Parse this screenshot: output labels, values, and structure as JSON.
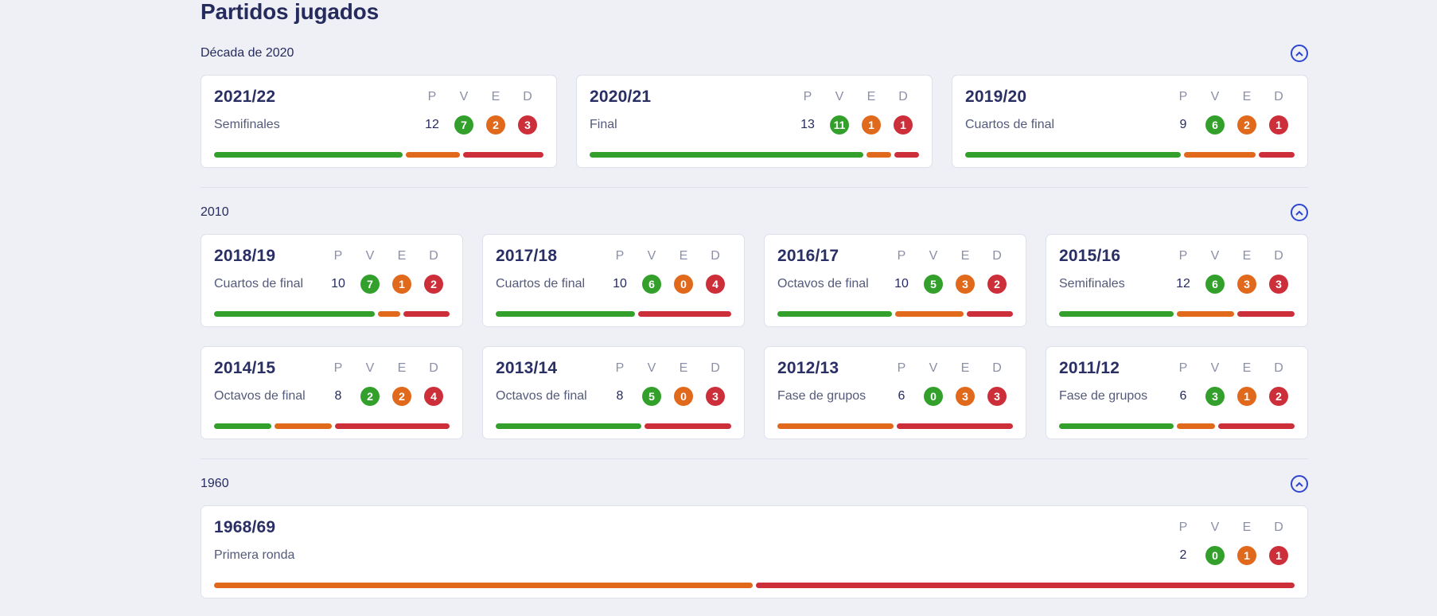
{
  "page_title": "Partidos jugados",
  "headers": {
    "p": "P",
    "v": "V",
    "e": "E",
    "d": "D"
  },
  "colors": {
    "win": "#33a02c",
    "draw": "#e0691c",
    "loss": "#cc2f3a",
    "accent": "#2f46d1"
  },
  "sections": [
    {
      "title": "Década de 2020",
      "toggle_icon": "chevron-up-icon",
      "seasons": [
        {
          "season": "2021/22",
          "stage": "Semifinales",
          "p": "12",
          "v": "7",
          "e": "2",
          "d": "3"
        },
        {
          "season": "2020/21",
          "stage": "Final",
          "p": "13",
          "v": "11",
          "e": "1",
          "d": "1"
        },
        {
          "season": "2019/20",
          "stage": "Cuartos de final",
          "p": "9",
          "v": "6",
          "e": "2",
          "d": "1"
        }
      ]
    },
    {
      "title": "2010",
      "toggle_icon": "chevron-up-icon",
      "seasons": [
        {
          "season": "2018/19",
          "stage": "Cuartos de final",
          "p": "10",
          "v": "7",
          "e": "1",
          "d": "2"
        },
        {
          "season": "2017/18",
          "stage": "Cuartos de final",
          "p": "10",
          "v": "6",
          "e": "0",
          "d": "4"
        },
        {
          "season": "2016/17",
          "stage": "Octavos de final",
          "p": "10",
          "v": "5",
          "e": "3",
          "d": "2"
        },
        {
          "season": "2015/16",
          "stage": "Semifinales",
          "p": "12",
          "v": "6",
          "e": "3",
          "d": "3"
        },
        {
          "season": "2014/15",
          "stage": "Octavos de final",
          "p": "8",
          "v": "2",
          "e": "2",
          "d": "4"
        },
        {
          "season": "2013/14",
          "stage": "Octavos de final",
          "p": "8",
          "v": "5",
          "e": "0",
          "d": "3"
        },
        {
          "season": "2012/13",
          "stage": "Fase de grupos",
          "p": "6",
          "v": "0",
          "e": "3",
          "d": "3"
        },
        {
          "season": "2011/12",
          "stage": "Fase de grupos",
          "p": "6",
          "v": "3",
          "e": "1",
          "d": "2"
        }
      ]
    },
    {
      "title": "1960",
      "toggle_icon": "chevron-up-icon",
      "seasons": [
        {
          "season": "1968/69",
          "stage": "Primera ronda",
          "p": "2",
          "v": "0",
          "e": "1",
          "d": "1"
        }
      ]
    }
  ]
}
